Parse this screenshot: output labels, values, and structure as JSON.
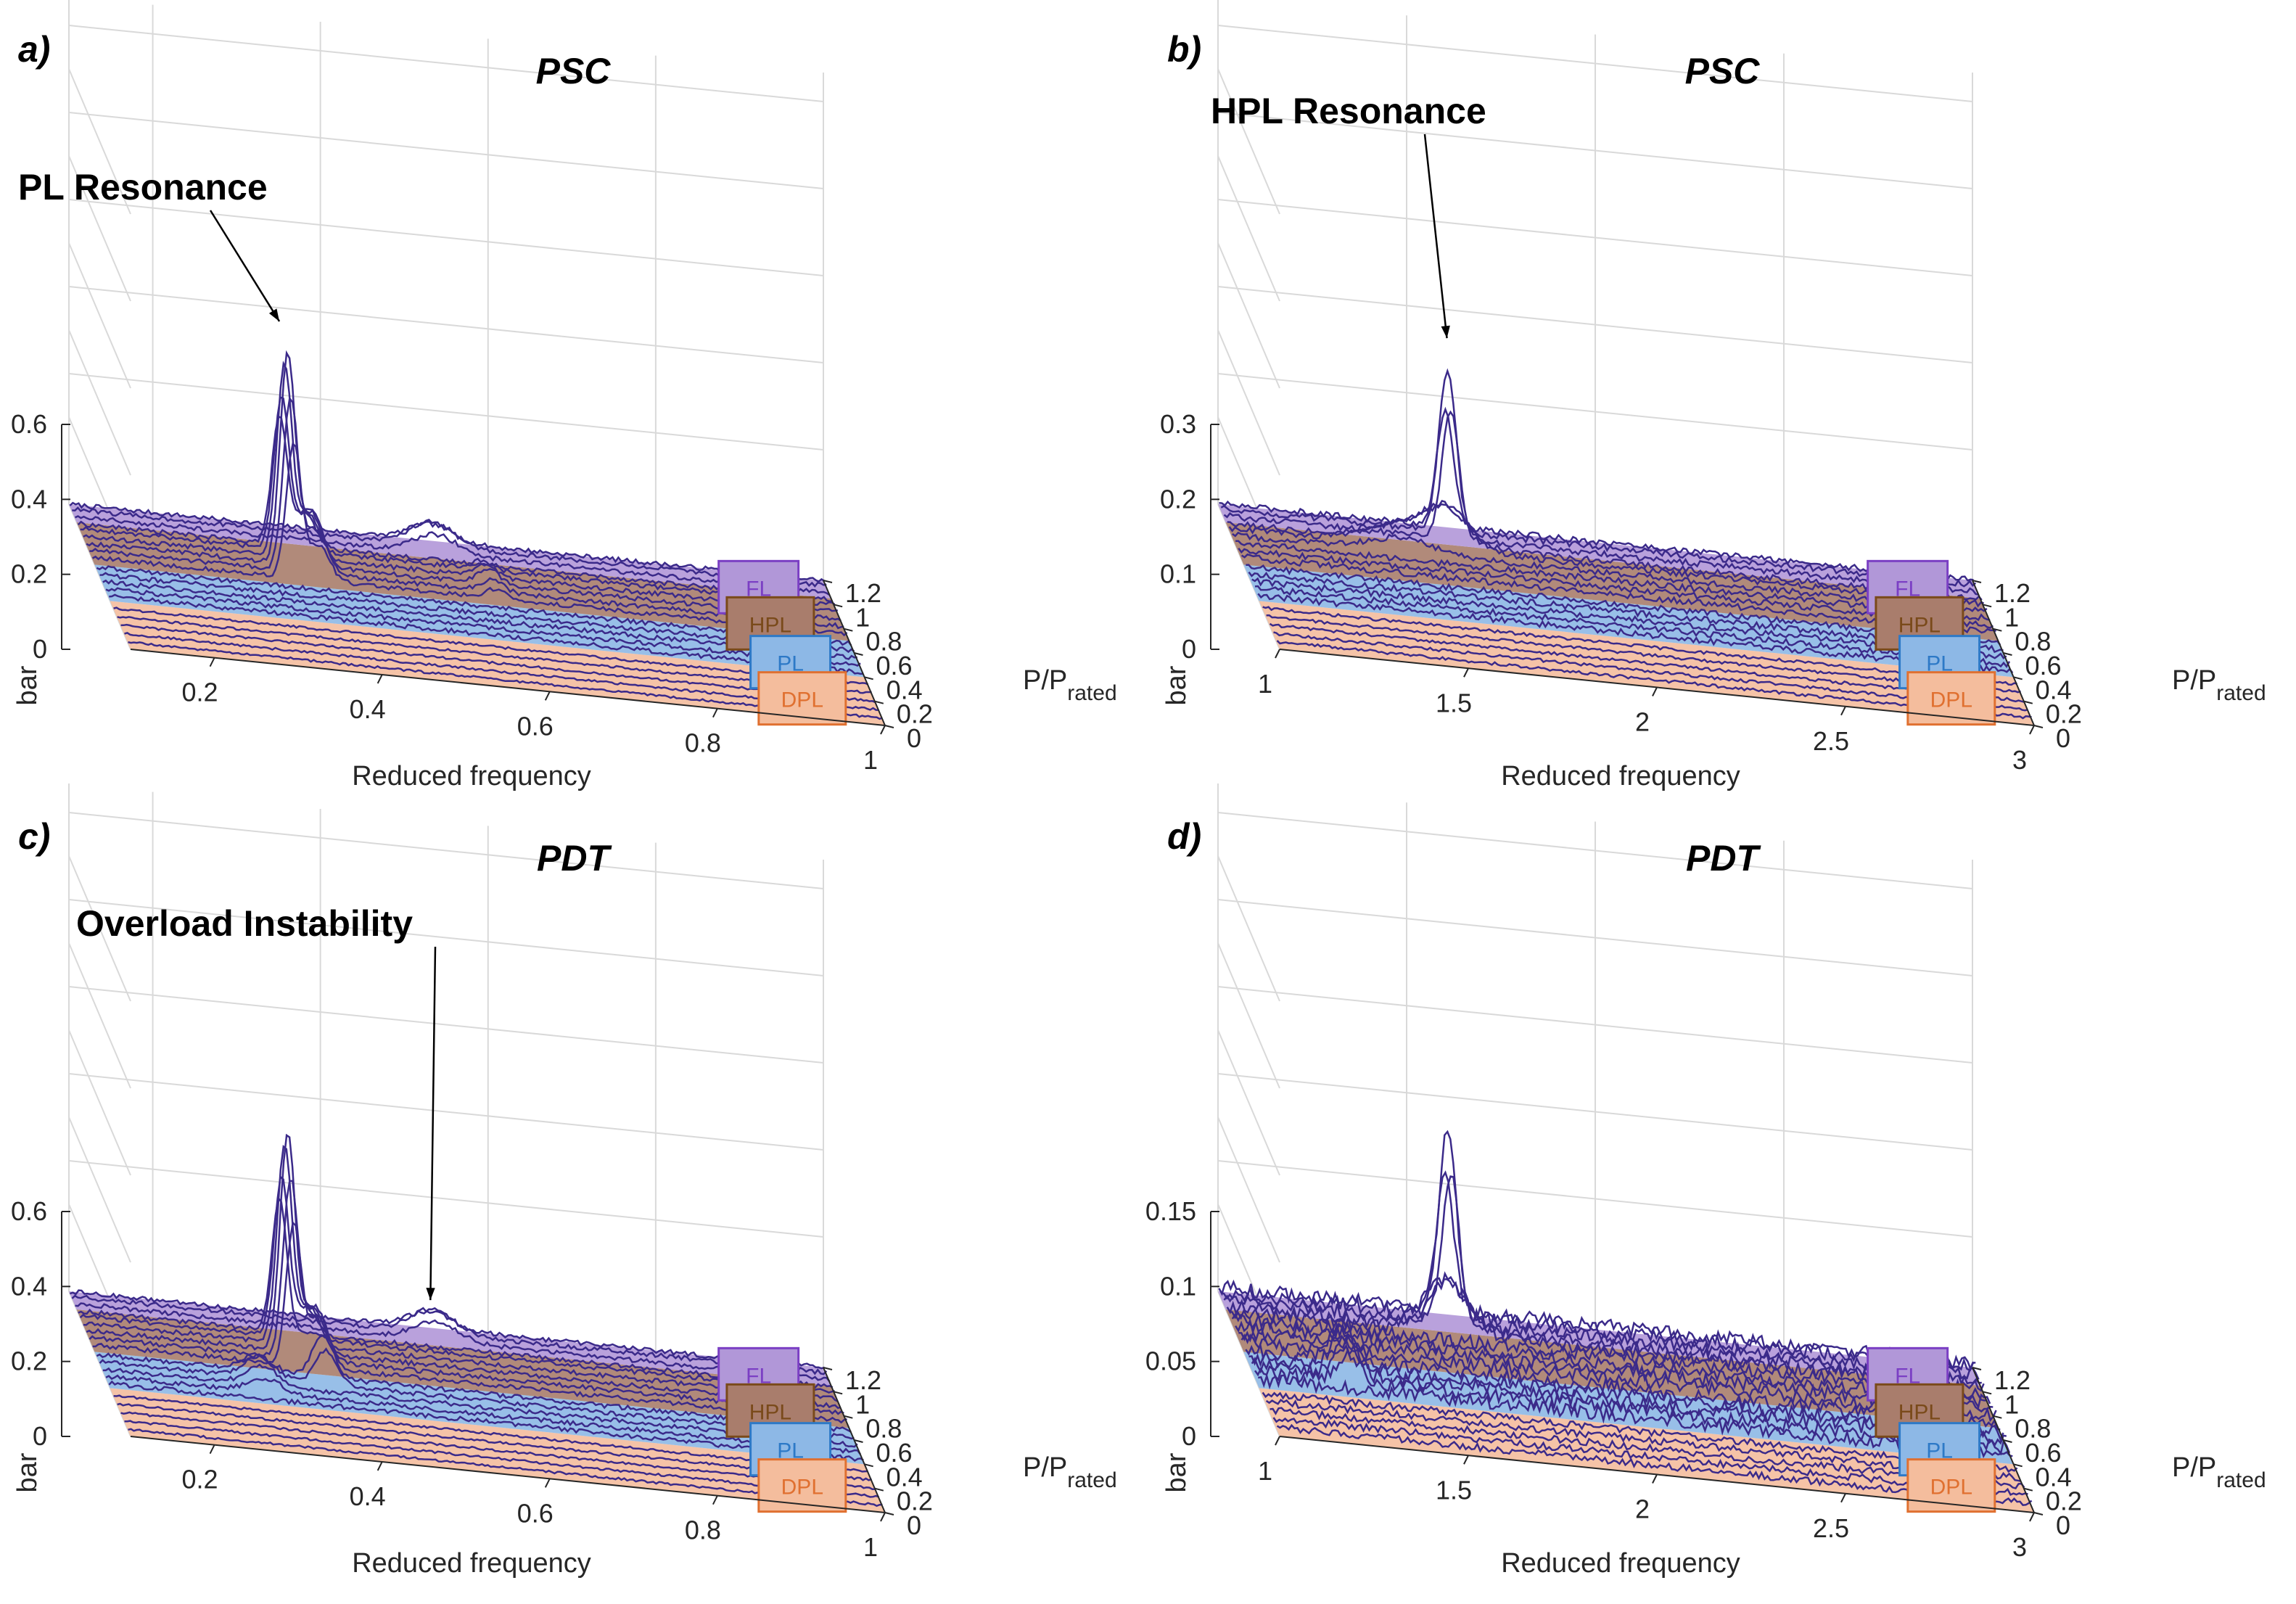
{
  "figure": {
    "z_axis_label": "bar",
    "x_axis_label": "Reduced frequency",
    "p_axis_label_main": "P/P",
    "p_axis_label_sub": "rated"
  },
  "colors": {
    "FL": "#b197d8",
    "HPL": "#a97d6c",
    "PL": "#8db8e6",
    "DPL": "#f4bd9d",
    "trace": "#3b2a8a",
    "FL_text": "#7b3fc4",
    "HPL_text": "#7a4a1a",
    "PL_text": "#2d79c7",
    "DPL_text": "#e07030"
  },
  "regions": {
    "FL": {
      "label": "FL",
      "range": [
        1.05,
        1.2
      ]
    },
    "HPL": {
      "label": "HPL",
      "range": [
        0.7,
        1.05
      ]
    },
    "PL": {
      "label": "PL",
      "range": [
        0.4,
        0.7
      ]
    },
    "DPL": {
      "label": "DPL",
      "range": [
        0.0,
        0.4
      ]
    }
  },
  "chart_data": [
    {
      "type": "waterfall-3d",
      "panel": "a)",
      "title": "PSC",
      "xlabel": "Reduced frequency",
      "ylabel": "P/Prated",
      "zlabel": "bar",
      "xlim": [
        0.1,
        1.0
      ],
      "ylim": [
        0,
        1.2
      ],
      "zlim": [
        0,
        0.6
      ],
      "xticks": [
        0.2,
        0.4,
        0.6,
        0.8,
        1
      ],
      "xtick_labels": [
        "0.2",
        "0.4",
        "0.6",
        "0.8",
        "1"
      ],
      "yticks": [
        0,
        0.2,
        0.4,
        0.6,
        0.8,
        1,
        1.2
      ],
      "ytick_labels": [
        "0",
        "0.2",
        "0.4",
        "0.6",
        "0.8",
        "1",
        "1.2"
      ],
      "zticks": [
        0,
        0.2,
        0.4,
        0.6
      ],
      "ztick_labels": [
        "0",
        "0.2",
        "0.4",
        "0.6"
      ],
      "power_levels": [
        0.05,
        0.12,
        0.19,
        0.26,
        0.33,
        0.42,
        0.48,
        0.54,
        0.6,
        0.66,
        0.74,
        0.8,
        0.86,
        0.92,
        0.98,
        1.02,
        1.08,
        1.14,
        1.18
      ],
      "peaks": [
        {
          "x": 0.34,
          "min_p": 0.7,
          "max_p": 1.05,
          "height": 0.58,
          "width": 0.007
        },
        {
          "x": 0.37,
          "min_p": 0.7,
          "max_p": 1.05,
          "height": 0.15,
          "width": 0.01
        },
        {
          "x": 0.53,
          "min_p": 1.05,
          "max_p": 1.2,
          "height": 0.07,
          "width": 0.02
        },
        {
          "x": 0.58,
          "min_p": 0.72,
          "max_p": 1.0,
          "height": 0.04,
          "width": 0.01
        }
      ],
      "noise": 0.012,
      "annotation": {
        "text": "PL Resonance",
        "x": 0.34,
        "p": 1.02,
        "z": 0.6
      }
    },
    {
      "type": "waterfall-3d",
      "panel": "b)",
      "title": "PSC",
      "xlabel": "Reduced frequency",
      "ylabel": "P/Prated",
      "zlabel": "bar",
      "xlim": [
        1.0,
        3.0
      ],
      "ylim": [
        0,
        1.2
      ],
      "zlim": [
        0,
        0.3
      ],
      "xticks": [
        1,
        1.5,
        2,
        2.5,
        3
      ],
      "xtick_labels": [
        "1",
        "1.5",
        "2",
        "2.5",
        "3"
      ],
      "yticks": [
        0,
        0.2,
        0.4,
        0.6,
        0.8,
        1,
        1.2
      ],
      "ytick_labels": [
        "0",
        "0.2",
        "0.4",
        "0.6",
        "0.8",
        "1",
        "1.2"
      ],
      "zticks": [
        0,
        0.1,
        0.2,
        0.3
      ],
      "ztick_labels": [
        "0",
        "0.1",
        "0.2",
        "0.3"
      ],
      "power_levels": [
        0.05,
        0.12,
        0.19,
        0.26,
        0.33,
        0.42,
        0.48,
        0.54,
        0.6,
        0.66,
        0.74,
        0.8,
        0.86,
        0.92,
        0.98,
        1.02,
        1.08,
        1.14,
        1.18
      ],
      "peaks": [
        {
          "x": 1.6,
          "min_p": 1.05,
          "max_p": 1.2,
          "height": 0.24,
          "width": 0.008
        },
        {
          "x": 1.58,
          "min_p": 0.95,
          "max_p": 1.05,
          "height": 0.06,
          "width": 0.02
        },
        {
          "x": 1.45,
          "min_p": 0.9,
          "max_p": 1.05,
          "height": 0.03,
          "width": 0.03
        }
      ],
      "noise": 0.008,
      "annotation": {
        "text": "HPL Resonance",
        "x": 1.6,
        "p": 1.15,
        "z": 0.26
      }
    },
    {
      "type": "waterfall-3d",
      "panel": "c)",
      "title": "PDT",
      "xlabel": "Reduced frequency",
      "ylabel": "P/Prated",
      "zlabel": "bar",
      "xlim": [
        0.1,
        1.0
      ],
      "ylim": [
        0,
        1.2
      ],
      "zlim": [
        0,
        0.6
      ],
      "xticks": [
        0.2,
        0.4,
        0.6,
        0.8,
        1
      ],
      "xtick_labels": [
        "0.2",
        "0.4",
        "0.6",
        "0.8",
        "1"
      ],
      "yticks": [
        0,
        0.2,
        0.4,
        0.6,
        0.8,
        1,
        1.2
      ],
      "ytick_labels": [
        "0",
        "0.2",
        "0.4",
        "0.6",
        "0.8",
        "1",
        "1.2"
      ],
      "zticks": [
        0,
        0.2,
        0.4,
        0.6
      ],
      "ztick_labels": [
        "0",
        "0.2",
        "0.4",
        "0.6"
      ],
      "power_levels": [
        0.05,
        0.12,
        0.19,
        0.26,
        0.33,
        0.42,
        0.48,
        0.54,
        0.6,
        0.66,
        0.74,
        0.8,
        0.86,
        0.92,
        0.98,
        1.02,
        1.08,
        1.14,
        1.18
      ],
      "peaks": [
        {
          "x": 0.34,
          "min_p": 0.7,
          "max_p": 1.05,
          "height": 0.6,
          "width": 0.007
        },
        {
          "x": 0.37,
          "min_p": 0.55,
          "max_p": 1.0,
          "height": 0.15,
          "width": 0.01
        },
        {
          "x": 0.53,
          "min_p": 1.05,
          "max_p": 1.2,
          "height": 0.07,
          "width": 0.02
        },
        {
          "x": 0.29,
          "min_p": 0.45,
          "max_p": 0.7,
          "height": 0.06,
          "width": 0.015
        }
      ],
      "noise": 0.012,
      "annotation": {
        "text": "Overload Instability",
        "x": 0.53,
        "p": 1.18,
        "z": 0.08
      }
    },
    {
      "type": "waterfall-3d",
      "panel": "d)",
      "title": "PDT",
      "xlabel": "Reduced frequency",
      "ylabel": "P/Prated",
      "zlabel": "bar",
      "xlim": [
        1.0,
        3.0
      ],
      "ylim": [
        0,
        1.2
      ],
      "zlim": [
        0,
        0.15
      ],
      "xticks": [
        1,
        1.5,
        2,
        2.5,
        3
      ],
      "xtick_labels": [
        "1",
        "1.5",
        "2",
        "2.5",
        "3"
      ],
      "yticks": [
        0,
        0.2,
        0.4,
        0.6,
        0.8,
        1,
        1.2
      ],
      "ytick_labels": [
        "0",
        "0.2",
        "0.4",
        "0.6",
        "0.8",
        "1",
        "1.2"
      ],
      "zticks": [
        0,
        0.05,
        0.1,
        0.15
      ],
      "ztick_labels": [
        "0",
        "0.05",
        "0.1",
        "0.15"
      ],
      "power_levels": [
        0.05,
        0.12,
        0.19,
        0.26,
        0.33,
        0.42,
        0.48,
        0.54,
        0.6,
        0.66,
        0.74,
        0.8,
        0.86,
        0.92,
        0.98,
        1.02,
        1.08,
        1.14,
        1.18
      ],
      "peaks": [
        {
          "x": 1.6,
          "min_p": 1.05,
          "max_p": 1.2,
          "height": 0.14,
          "width": 0.008
        },
        {
          "x": 1.58,
          "min_p": 0.95,
          "max_p": 1.05,
          "height": 0.04,
          "width": 0.02
        },
        {
          "x": 1.25,
          "min_p": 0.45,
          "max_p": 0.7,
          "height": 0.03,
          "width": 0.01
        }
      ],
      "noise": 0.009,
      "annotation": null
    }
  ]
}
